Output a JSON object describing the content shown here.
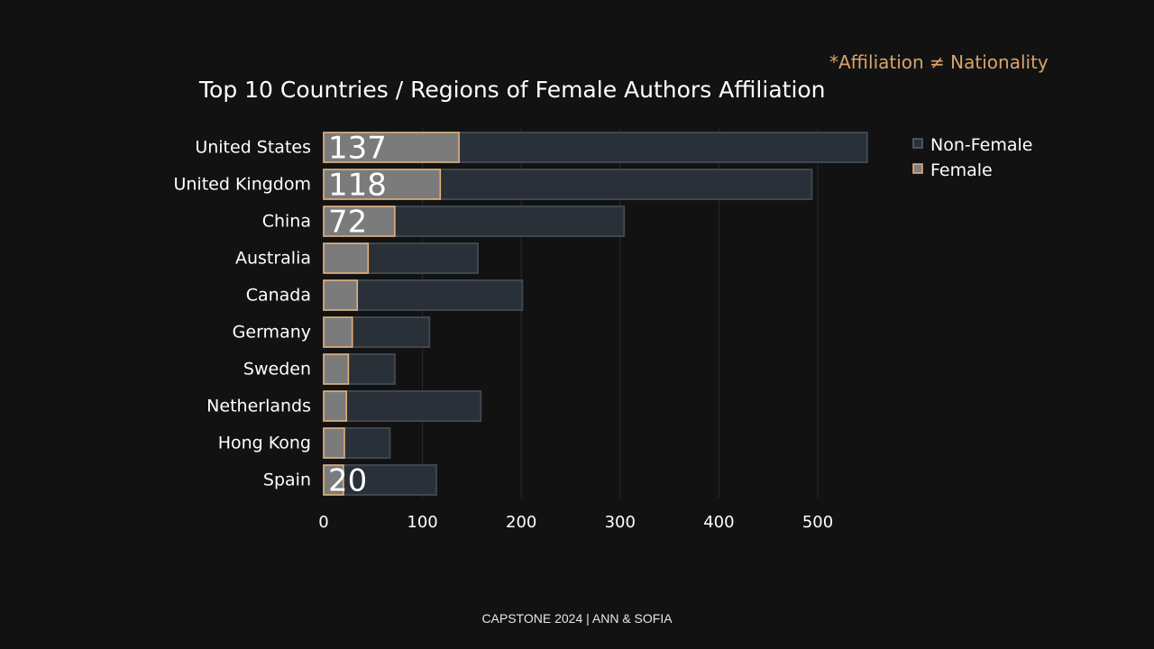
{
  "note": "*Affiliation ≠ Nationality",
  "footer": "CAPSTONE 2024 | ANN & SOFIA",
  "colors": {
    "background": "#121212",
    "non_female_fill": "#2a3038",
    "non_female_stroke": "#3e4751",
    "female_fill": "#7f7f7f",
    "female_stroke": "#e8b47c",
    "accent_text": "#d9a36b",
    "grid": "#2b2b2b"
  },
  "chart_data": {
    "type": "bar",
    "orientation": "horizontal",
    "barmode": "overlay",
    "title": "Top 10 Countries / Regions of Female Authors Affiliation",
    "categories": [
      "United States",
      "United Kingdom",
      "China",
      "Australia",
      "Canada",
      "Germany",
      "Sweden",
      "Netherlands",
      "Hong Kong",
      "Spain"
    ],
    "series": [
      {
        "name": "Non-Female",
        "values": [
          550,
          494,
          304,
          156,
          201,
          107,
          72,
          159,
          67,
          114
        ]
      },
      {
        "name": "Female",
        "values": [
          137,
          118,
          72,
          45,
          34,
          29,
          25,
          23,
          21,
          20
        ]
      }
    ],
    "data_labels": [
      {
        "category": "United States",
        "text": "137"
      },
      {
        "category": "United Kingdom",
        "text": "118"
      },
      {
        "category": "China",
        "text": "72"
      },
      {
        "category": "Spain",
        "text": "20"
      }
    ],
    "xticks": [
      0,
      100,
      200,
      300,
      400,
      500
    ],
    "xlim": [
      0,
      560
    ],
    "xlabel": "",
    "ylabel": "",
    "grid": "vertical",
    "legend": {
      "position": "top-right",
      "items": [
        "Non-Female",
        "Female"
      ]
    }
  }
}
